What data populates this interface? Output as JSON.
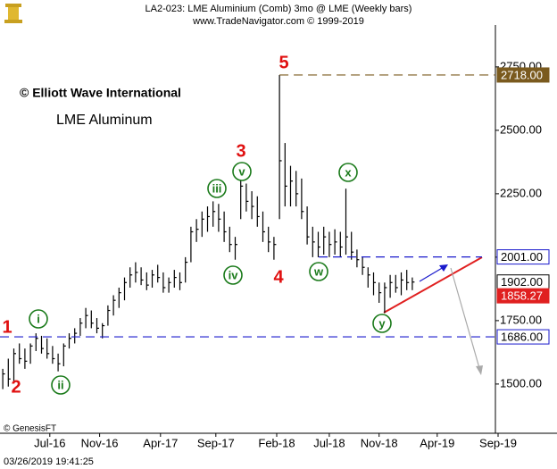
{
  "chart_data": {
    "type": "ohlc",
    "title": "LA2-023:  LME Aluminium (Comb) 3mo @ LME  (Weekly bars)",
    "subtitle": "www.TradeNavigator.com © 1999-2019",
    "watermark": "© Elliott Wave International",
    "instrument": "LME Aluminum",
    "source": "© GenesisFT",
    "timestamp": "03/26/2019 19:41:25",
    "color": "#000000",
    "x": [
      1,
      3,
      5,
      7,
      9,
      11,
      13,
      15,
      17,
      19,
      21,
      23,
      25,
      27,
      29,
      31,
      33,
      35,
      37,
      39,
      41,
      43,
      45,
      47,
      49,
      51,
      53,
      55,
      57,
      59,
      61,
      63,
      65,
      67,
      69,
      71,
      73,
      75,
      77,
      79,
      81,
      83,
      85,
      87,
      89,
      91,
      93,
      95,
      97,
      99,
      101,
      103,
      105,
      107,
      109,
      111,
      113,
      115,
      117,
      119,
      121,
      123,
      125,
      127,
      129,
      131,
      133,
      135,
      137,
      139,
      141,
      143,
      145,
      147,
      149
    ],
    "high": [
      1560,
      1600,
      1640,
      1660,
      1640,
      1660,
      1700,
      1690,
      1680,
      1650,
      1620,
      1660,
      1700,
      1720,
      1760,
      1800,
      1790,
      1760,
      1740,
      1810,
      1850,
      1880,
      1920,
      1960,
      1980,
      1960,
      1940,
      1950,
      1970,
      1940,
      1920,
      1950,
      1940,
      2000,
      2120,
      2150,
      2180,
      2200,
      2220,
      2210,
      2180,
      2120,
      2080,
      2310,
      2290,
      2260,
      2240,
      2180,
      2120,
      2080,
      2718,
      2450,
      2360,
      2340,
      2310,
      2200,
      2120,
      2100,
      2120,
      2100,
      2110,
      2100,
      2270,
      2100,
      2030,
      2000,
      1960,
      1940,
      1900,
      1900,
      1930,
      1930,
      1940,
      1950,
      1920
    ],
    "low": [
      1480,
      1490,
      1510,
      1580,
      1560,
      1580,
      1630,
      1620,
      1600,
      1580,
      1550,
      1570,
      1640,
      1660,
      1690,
      1720,
      1720,
      1700,
      1680,
      1730,
      1770,
      1800,
      1830,
      1880,
      1900,
      1890,
      1870,
      1880,
      1900,
      1860,
      1860,
      1880,
      1870,
      1900,
      1980,
      2060,
      2080,
      2100,
      2120,
      2100,
      2060,
      2020,
      1990,
      2150,
      2180,
      2150,
      2120,
      2060,
      2020,
      1990,
      2150,
      2200,
      2200,
      2200,
      2150,
      2050,
      2000,
      2000,
      2010,
      2000,
      2010,
      2000,
      2010,
      1990,
      1960,
      1930,
      1880,
      1850,
      1820,
      1780,
      1840,
      1860,
      1850,
      1870,
      1870
    ],
    "close": [
      1540,
      1520,
      1620,
      1600,
      1590,
      1650,
      1680,
      1640,
      1620,
      1600,
      1580,
      1650,
      1680,
      1700,
      1740,
      1770,
      1740,
      1720,
      1730,
      1790,
      1830,
      1860,
      1900,
      1930,
      1940,
      1910,
      1890,
      1930,
      1920,
      1880,
      1900,
      1920,
      1900,
      1980,
      2100,
      2110,
      2150,
      2160,
      2180,
      2150,
      2100,
      2050,
      2050,
      2280,
      2220,
      2200,
      2160,
      2100,
      2060,
      2050,
      2380,
      2280,
      2300,
      2250,
      2180,
      2080,
      2060,
      2040,
      2080,
      2050,
      2060,
      2040,
      2080,
      2020,
      1990,
      1960,
      1930,
      1900,
      1860,
      1880,
      1900,
      1880,
      1910,
      1900,
      1902
    ],
    "xlim": [
      0,
      180
    ],
    "xticks": [
      {
        "value": 18,
        "label": "Jul-16"
      },
      {
        "value": 36,
        "label": "Nov-16"
      },
      {
        "value": 58,
        "label": "Apr-17"
      },
      {
        "value": 78,
        "label": "Sep-17"
      },
      {
        "value": 100,
        "label": "Feb-18"
      },
      {
        "value": 119,
        "label": "Jul-18"
      },
      {
        "value": 137,
        "label": "Nov-18"
      },
      {
        "value": 158,
        "label": "Apr-19"
      },
      {
        "value": 180,
        "label": "Sep-19"
      }
    ],
    "ylim": [
      1306,
      2915
    ],
    "yticks": [
      {
        "value": 1500,
        "label": "1500.00"
      },
      {
        "value": 1750,
        "label": "1750.00"
      },
      {
        "value": 2000,
        "label": "2000.00"
      },
      {
        "value": 2250,
        "label": "2250.00"
      },
      {
        "value": 2500,
        "label": "2500.00"
      },
      {
        "value": 2750,
        "label": "2750.00"
      }
    ],
    "levels": [
      {
        "value": 2718,
        "label": "2718.00",
        "color": "#7a5a1e"
      },
      {
        "value": 2001,
        "label": "2001.00",
        "color": "#1a1acc"
      },
      {
        "value": 1686,
        "label": "1686.00",
        "color": "#1a1acc"
      },
      {
        "value": 1902,
        "label": "1902.00",
        "color": "#000000"
      },
      {
        "value": 1858.27,
        "label": "1858.27",
        "color": "#e02020"
      }
    ],
    "annotations": [
      {
        "text": "1",
        "color": "#e01010",
        "circled": false
      },
      {
        "text": "2",
        "color": "#e01010",
        "circled": false
      },
      {
        "text": "i",
        "color": "#1a7a1a",
        "circled": true
      },
      {
        "text": "ii",
        "color": "#1a7a1a",
        "circled": true
      },
      {
        "text": "iii",
        "color": "#1a7a1a",
        "circled": true
      },
      {
        "text": "iv",
        "color": "#1a7a1a",
        "circled": true
      },
      {
        "text": "v",
        "color": "#1a7a1a",
        "circled": true
      },
      {
        "text": "3",
        "color": "#e01010",
        "circled": false
      },
      {
        "text": "4",
        "color": "#e01010",
        "circled": false
      },
      {
        "text": "5",
        "color": "#e01010",
        "circled": false
      },
      {
        "text": "w",
        "color": "#1a7a1a",
        "circled": true
      },
      {
        "text": "x",
        "color": "#1a7a1a",
        "circled": true
      },
      {
        "text": "y",
        "color": "#1a7a1a",
        "circled": true
      }
    ]
  }
}
